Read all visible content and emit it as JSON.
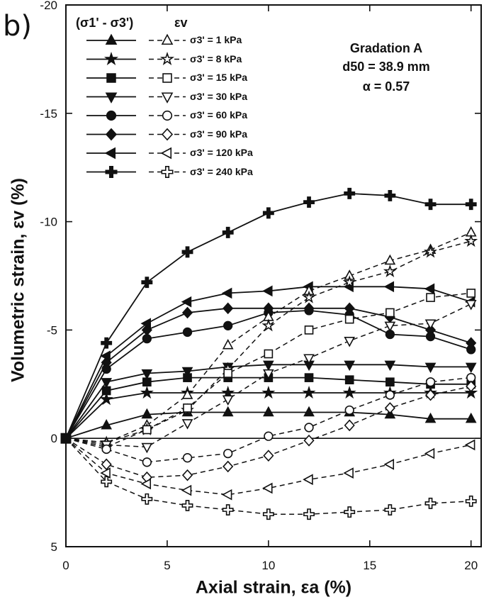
{
  "panel_label": "b)",
  "legend": {
    "header_deviator": "(σ1' - σ3')",
    "header_volumetric": "εv",
    "entries": [
      {
        "label": "σ3' = 1 kPa",
        "marker": "triangle-up"
      },
      {
        "label": "σ3' = 8 kPa",
        "marker": "star"
      },
      {
        "label": "σ3' = 15 kPa",
        "marker": "square"
      },
      {
        "label": "σ3' = 30 kPa",
        "marker": "triangle-down"
      },
      {
        "label": "σ3' = 60 kPa",
        "marker": "circle"
      },
      {
        "label": "σ3' = 90 kPa",
        "marker": "diamond"
      },
      {
        "label": "σ3' = 120 kPa",
        "marker": "triangle-left"
      },
      {
        "label": "σ3' = 240 kPa",
        "marker": "cross"
      }
    ]
  },
  "annotation": {
    "line1": "Gradation A",
    "line2": "d50 = 38.9 mm",
    "line3": "α = 0.57"
  },
  "chart_data": {
    "type": "line",
    "xlabel": "Axial strain, εa (%)",
    "ylabel": "Volumetric strain, εv (%)",
    "xlim": [
      0,
      20.5
    ],
    "ylim": [
      -20,
      5
    ],
    "y_axis_inverted": true,
    "xticks": [
      0,
      5,
      10,
      15,
      20
    ],
    "yticks": [
      -20,
      -15,
      -10,
      -5,
      0,
      5
    ],
    "zero_line": true,
    "grid": false,
    "legend_position": "top-left",
    "deviator_stress_series": [
      {
        "name": "σ3' = 1 kPa",
        "marker": "triangle-up",
        "x": [
          0,
          2,
          4,
          6,
          8,
          10,
          12,
          14,
          16,
          18,
          20
        ],
        "y": [
          0,
          -0.6,
          -1.1,
          -1.2,
          -1.2,
          -1.2,
          -1.2,
          -1.2,
          -1.1,
          -0.9,
          -0.9
        ]
      },
      {
        "name": "σ3' = 8 kPa",
        "marker": "star",
        "x": [
          0,
          2,
          4,
          6,
          8,
          10,
          12,
          14,
          16,
          18,
          20
        ],
        "y": [
          0,
          -1.8,
          -2.1,
          -2.1,
          -2.1,
          -2.1,
          -2.1,
          -2.1,
          -2.1,
          -2.1,
          -2.1
        ]
      },
      {
        "name": "σ3' = 15 kPa",
        "marker": "square",
        "x": [
          0,
          2,
          4,
          6,
          8,
          10,
          12,
          14,
          16,
          18,
          20
        ],
        "y": [
          0,
          -2.2,
          -2.6,
          -2.8,
          -2.8,
          -2.8,
          -2.8,
          -2.7,
          -2.6,
          -2.5,
          -2.5
        ]
      },
      {
        "name": "σ3' = 30 kPa",
        "marker": "triangle-down",
        "x": [
          0,
          2,
          4,
          6,
          8,
          10,
          12,
          14,
          16,
          18,
          20
        ],
        "y": [
          0,
          -2.6,
          -3.0,
          -3.1,
          -3.3,
          -3.4,
          -3.4,
          -3.4,
          -3.4,
          -3.3,
          -3.3
        ]
      },
      {
        "name": "σ3' = 60 kPa",
        "marker": "circle",
        "x": [
          0,
          2,
          4,
          6,
          8,
          10,
          12,
          14,
          16,
          18,
          20
        ],
        "y": [
          0,
          -3.2,
          -4.6,
          -4.9,
          -5.2,
          -5.8,
          -5.9,
          -5.7,
          -4.8,
          -4.7,
          -4.1
        ]
      },
      {
        "name": "σ3' = 90 kPa",
        "marker": "diamond",
        "x": [
          0,
          2,
          4,
          6,
          8,
          10,
          12,
          14,
          16,
          18,
          20
        ],
        "y": [
          0,
          -3.5,
          -5.0,
          -5.8,
          -6.0,
          -6.0,
          -6.0,
          -6.0,
          -5.6,
          -5.0,
          -4.4
        ]
      },
      {
        "name": "σ3' = 120 kPa",
        "marker": "triangle-left",
        "x": [
          0,
          2,
          4,
          6,
          8,
          10,
          12,
          14,
          16,
          18,
          20
        ],
        "y": [
          0,
          -3.8,
          -5.3,
          -6.3,
          -6.7,
          -6.8,
          -7.0,
          -7.0,
          -7.0,
          -6.9,
          -6.3
        ]
      },
      {
        "name": "σ3' = 240 kPa",
        "marker": "cross",
        "x": [
          0,
          2,
          4,
          6,
          8,
          10,
          12,
          14,
          16,
          18,
          20
        ],
        "y": [
          0,
          -4.4,
          -7.2,
          -8.6,
          -9.5,
          -10.4,
          -10.9,
          -11.3,
          -11.2,
          -10.8,
          -10.8
        ]
      }
    ],
    "volumetric_strain_series": [
      {
        "name": "σ3' = 1 kPa",
        "marker": "triangle-up-open",
        "x": [
          0,
          2,
          4,
          6,
          8,
          10,
          12,
          14,
          16,
          18,
          20
        ],
        "y": [
          0,
          0.2,
          -0.6,
          -2.0,
          -4.3,
          -5.6,
          -6.8,
          -7.5,
          -8.2,
          -8.7,
          -9.5
        ]
      },
      {
        "name": "σ3' = 8 kPa",
        "marker": "star-open",
        "x": [
          0,
          2,
          4,
          6,
          8,
          10,
          12,
          14,
          16,
          18,
          20
        ],
        "y": [
          0,
          0.2,
          -0.4,
          -1.3,
          -3.2,
          -5.2,
          -6.5,
          -7.2,
          -7.7,
          -8.6,
          -9.1
        ]
      },
      {
        "name": "σ3' = 15 kPa",
        "marker": "square-open",
        "x": [
          0,
          2,
          4,
          6,
          8,
          10,
          12,
          14,
          16,
          18,
          20
        ],
        "y": [
          0,
          0.4,
          -0.4,
          -1.4,
          -3.0,
          -3.9,
          -5.0,
          -5.5,
          -5.8,
          -6.5,
          -6.7
        ]
      },
      {
        "name": "σ3' = 30 kPa",
        "marker": "triangle-down-open",
        "x": [
          0,
          2,
          4,
          6,
          8,
          10,
          12,
          14,
          16,
          18,
          20
        ],
        "y": [
          0,
          0.3,
          0.4,
          -0.7,
          -1.8,
          -3.0,
          -3.7,
          -4.5,
          -5.2,
          -5.3,
          -6.2
        ]
      },
      {
        "name": "σ3' = 60 kPa",
        "marker": "circle-open",
        "x": [
          0,
          2,
          4,
          6,
          8,
          10,
          12,
          14,
          16,
          18,
          20
        ],
        "y": [
          0,
          0.5,
          1.1,
          0.9,
          0.7,
          -0.1,
          -0.5,
          -1.3,
          -2.0,
          -2.6,
          -2.8
        ]
      },
      {
        "name": "σ3' = 90 kPa",
        "marker": "diamond-open",
        "x": [
          0,
          2,
          4,
          6,
          8,
          10,
          12,
          14,
          16,
          18,
          20
        ],
        "y": [
          0,
          1.2,
          1.8,
          1.7,
          1.3,
          0.8,
          0.1,
          -0.6,
          -1.4,
          -2.0,
          -2.4
        ]
      },
      {
        "name": "σ3' = 120 kPa",
        "marker": "triangle-left-open",
        "x": [
          0,
          2,
          4,
          6,
          8,
          10,
          12,
          14,
          16,
          18,
          20
        ],
        "y": [
          0,
          1.6,
          2.1,
          2.4,
          2.6,
          2.3,
          1.9,
          1.6,
          1.2,
          0.7,
          0.3
        ]
      },
      {
        "name": "σ3' = 240 kPa",
        "marker": "cross-open",
        "x": [
          0,
          2,
          4,
          6,
          8,
          10,
          12,
          14,
          16,
          18,
          20
        ],
        "y": [
          0,
          2.0,
          2.8,
          3.1,
          3.3,
          3.5,
          3.5,
          3.4,
          3.3,
          3.0,
          2.9
        ]
      }
    ]
  }
}
